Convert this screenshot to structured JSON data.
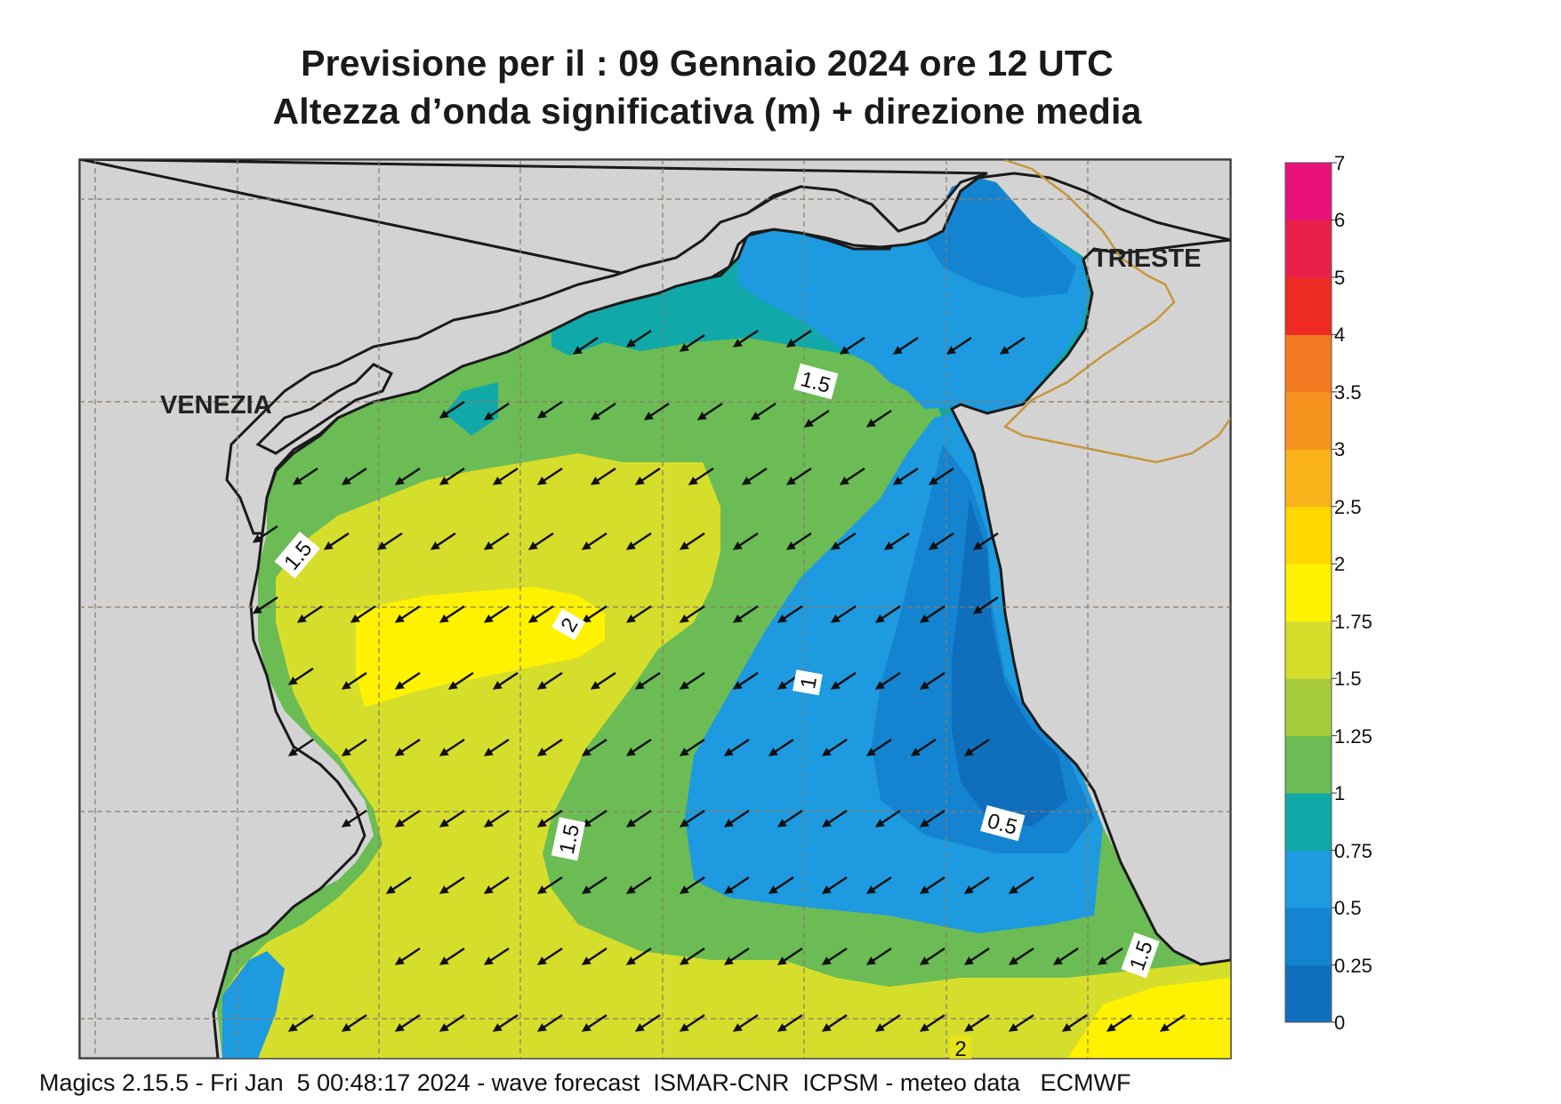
{
  "title": {
    "line1": "Previsione per il  :  09  Gennaio  2024   ore 12 UTC",
    "line2": "Altezza d’onda significativa (m) + direzione media"
  },
  "places": {
    "venezia": "VENEZIA",
    "trieste": "TRIESTE"
  },
  "contour_labels": [
    "1.5",
    "1.5",
    "2",
    "1",
    "1.5",
    "0.5",
    "1.5",
    "2"
  ],
  "colorbar": {
    "unit": "m",
    "levels": [
      "0",
      "0.25",
      "0.5",
      "0.75",
      "1",
      "1.25",
      "1.5",
      "1.75",
      "2",
      "2.5",
      "3",
      "3.5",
      "4",
      "5",
      "6",
      "7"
    ],
    "colors": [
      "#0f6fbd",
      "#1484d1",
      "#1d9ae0",
      "#10a8a8",
      "#6bbc54",
      "#a6cc3c",
      "#d6de2c",
      "#fff200",
      "#ffd800",
      "#f9b21a",
      "#f6931f",
      "#f37a22",
      "#ee2a24",
      "#e91f4a",
      "#e8127a"
    ]
  },
  "map_colors": {
    "land": "#d3d3d3",
    "coast": "#1a1a1a",
    "border": "#c8963c",
    "grid": "#8c7b6a"
  },
  "footer": "Magics 2.15.5 - Fri Jan  5 00:48:17 2024 - wave forecast  ISMAR-CNR  ICPSM - meteo data   ECMWF"
}
